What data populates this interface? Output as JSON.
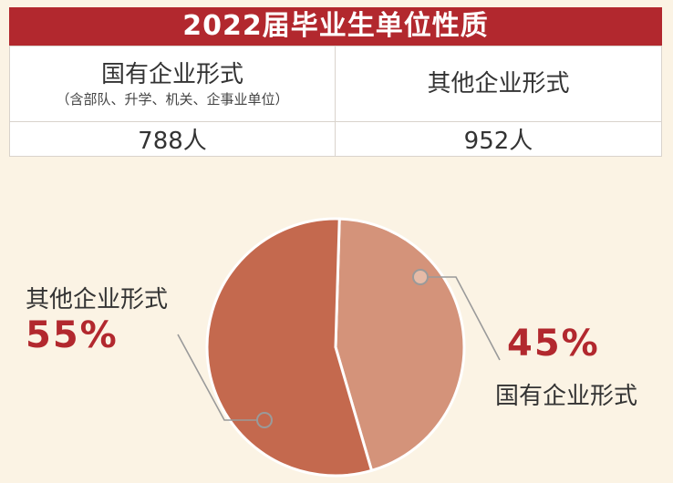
{
  "title": "2022届毕业生单位性质",
  "table": {
    "col1_header": "国有企业形式",
    "col1_subheader": "（含部队、升学、机关、企事业单位）",
    "col2_header": "其他企业形式",
    "col1_value": "788人",
    "col2_value": "952人"
  },
  "chart_data": {
    "type": "pie",
    "slices": [
      {
        "label": "国有企业形式",
        "value": 45,
        "value_label": "45%",
        "color": "#d4937a"
      },
      {
        "label": "其他企业形式",
        "value": 55,
        "value_label": "55%",
        "color": "#c4694e"
      }
    ]
  },
  "colors": {
    "accent": "#b2282e",
    "background": "#fbf3e4"
  }
}
